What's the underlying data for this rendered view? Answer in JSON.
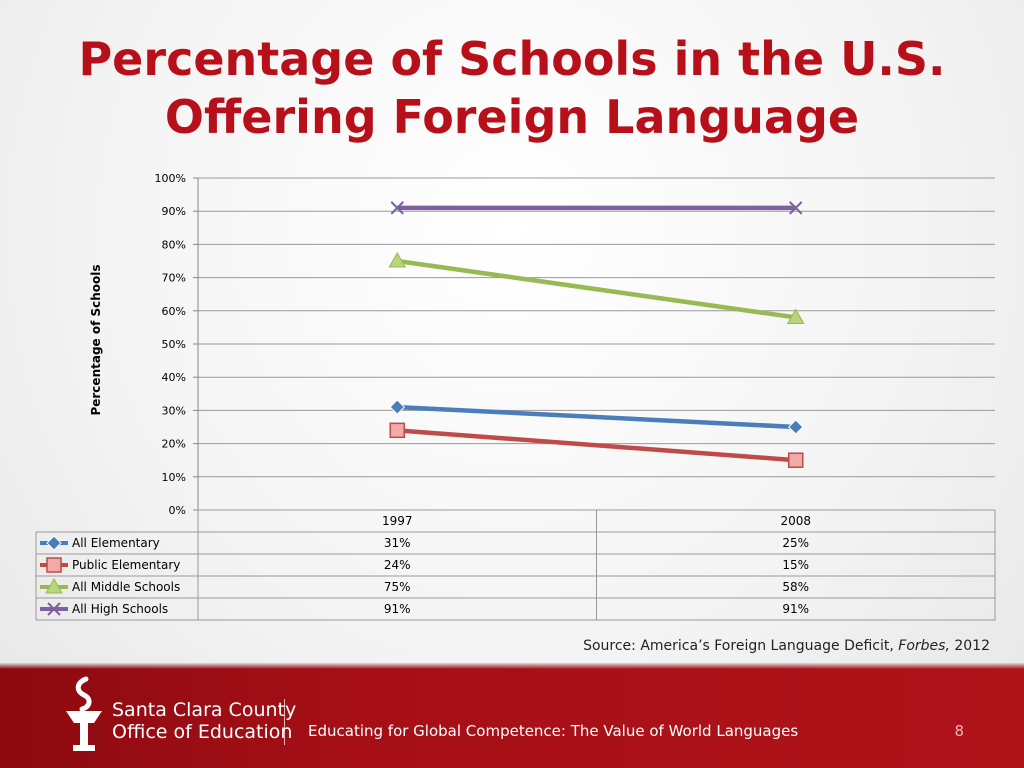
{
  "slide": {
    "title_line1": "Percentage of Schools in the U.S.",
    "title_line2": "Offering Foreign Language",
    "source_prefix": "Source: America’s Foreign Language Deficit, ",
    "source_publication": "Forbes,",
    "source_year": " 2012",
    "footer_org_line1": "Santa Clara County",
    "footer_org_line2": "Office of Education",
    "footer_text": "Educating for Global Competence: The Value of World Languages",
    "page_number": "8"
  },
  "colors": {
    "title": "#b8101a",
    "footer": "#a60f16"
  },
  "chart_data": {
    "type": "line",
    "title": "",
    "xlabel": "",
    "ylabel": "Percentage of Schools",
    "categories": [
      "1997",
      "2008"
    ],
    "ylim": [
      0,
      100
    ],
    "y_ticks": [
      "0%",
      "10%",
      "20%",
      "30%",
      "40%",
      "50%",
      "60%",
      "70%",
      "80%",
      "90%",
      "100%"
    ],
    "grid": true,
    "legend_placement": "data table below chart",
    "series": [
      {
        "name": "All Elementary",
        "values": [
          31,
          25
        ],
        "labels": [
          "31%",
          "25%"
        ],
        "color": "#4a7ebb",
        "marker": "diamond"
      },
      {
        "name": "Public Elementary",
        "values": [
          24,
          15
        ],
        "labels": [
          "24%",
          "15%"
        ],
        "color": "#be4b48",
        "marker": "square"
      },
      {
        "name": "All Middle Schools",
        "values": [
          75,
          58
        ],
        "labels": [
          "75%",
          "58%"
        ],
        "color": "#98b954",
        "marker": "triangle"
      },
      {
        "name": "All High Schools",
        "values": [
          91,
          91
        ],
        "labels": [
          "91%",
          "91%"
        ],
        "color": "#7d60a0",
        "marker": "x"
      }
    ]
  }
}
